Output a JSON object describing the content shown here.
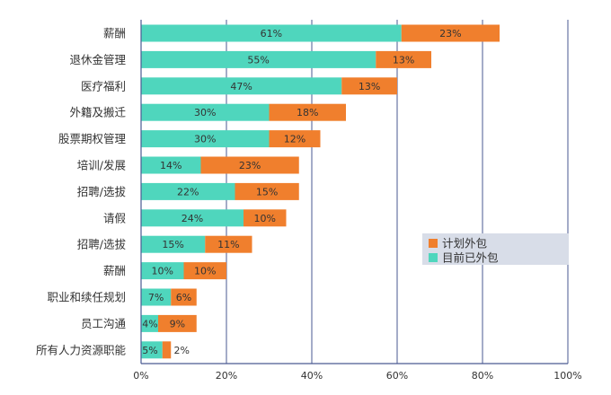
{
  "chart_data": {
    "type": "bar",
    "orientation": "horizontal",
    "stacked": true,
    "categories": [
      "薪酬",
      "退休金管理",
      "医疗福利",
      "外籍及搬迁",
      "股票期权管理",
      "培训/发展",
      "招聘/选拔",
      "请假",
      "招聘/选拔",
      "薪酬",
      "职业和续任规划",
      "员工沟通",
      "所有人力资源职能"
    ],
    "series": [
      {
        "name": "目前已外包",
        "color": "#4fd6bd",
        "values": [
          61,
          55,
          47,
          30,
          30,
          14,
          22,
          24,
          15,
          10,
          7,
          4,
          5
        ],
        "labels": [
          "61%",
          "55%",
          "47%",
          "30%",
          "30%",
          "14%",
          "22%",
          "24%",
          "15%",
          "10%",
          "7%",
          "4%",
          "5%"
        ]
      },
      {
        "name": "计划外包",
        "color": "#f07f2d",
        "values": [
          23,
          13,
          13,
          18,
          12,
          23,
          15,
          10,
          11,
          10,
          6,
          9,
          2
        ],
        "labels": [
          "23%",
          "13%",
          "13%",
          "18%",
          "12%",
          "23%",
          "15%",
          "10%",
          "11%",
          "10%",
          "6%",
          "9%",
          "2%"
        ]
      }
    ],
    "xlim": [
      0,
      100
    ],
    "xticks": [
      "0%",
      "20%",
      "40%",
      "60%",
      "80%",
      "100%"
    ],
    "xtick_values": [
      0,
      20,
      40,
      60,
      80,
      100
    ],
    "grid": true,
    "legend_position": "right",
    "legend_order": [
      "计划外包",
      "目前已外包"
    ]
  }
}
